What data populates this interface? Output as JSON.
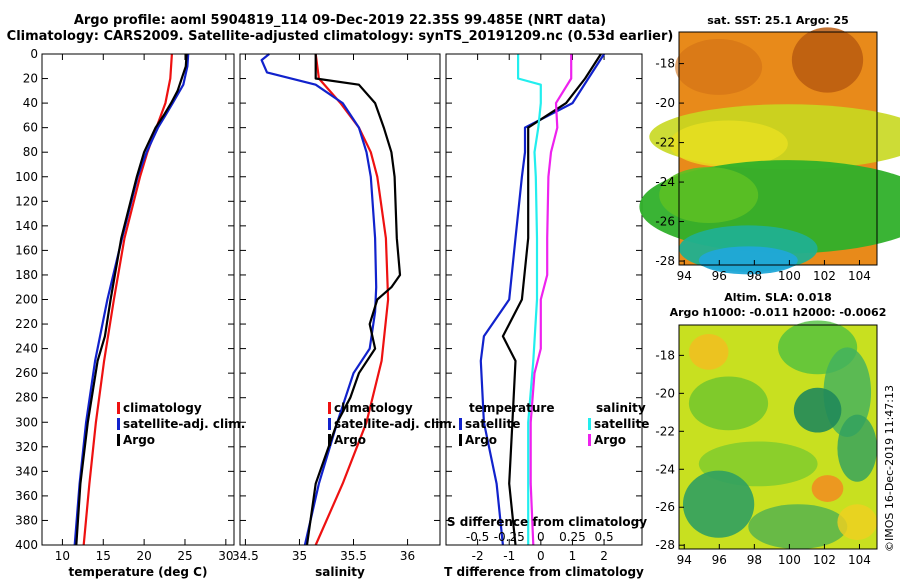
{
  "header": {
    "line1": "Argo profile: aoml 5904819_114 09-Dec-2019 22.35S 99.485E (NRT data)",
    "line2": "Climatology: CARS2009. Satellite-adjusted climatology: synTS_20191209.nc (0.53d earlier)"
  },
  "depth_ticks": [
    0,
    20,
    40,
    60,
    80,
    100,
    120,
    140,
    160,
    180,
    200,
    220,
    240,
    260,
    280,
    300,
    320,
    340,
    360,
    380,
    400
  ],
  "colors": {
    "climatology": "#ee1111",
    "satellite": "#1122cc",
    "argo": "#000000",
    "sat_salinity": "#22eeee",
    "argo_salinity": "#ee22ee"
  },
  "chart_data": [
    {
      "type": "line",
      "name": "temperature",
      "xlabel": "temperature (deg C)",
      "ylabel": "depth",
      "xlim": [
        7.5,
        31
      ],
      "ylim": [
        400,
        0
      ],
      "xticks": [
        10,
        15,
        20,
        25,
        30
      ],
      "legend": [
        "climatology",
        "satellite-adj. clim.",
        "Argo"
      ],
      "series": [
        {
          "name": "climatology",
          "color": "#ee1111",
          "depth": [
            0,
            20,
            40,
            60,
            80,
            100,
            150,
            200,
            250,
            300,
            350,
            400
          ],
          "values": [
            23.4,
            23.2,
            22.6,
            21.5,
            20.4,
            19.5,
            17.6,
            16.3,
            15.1,
            14.1,
            13.3,
            12.6
          ]
        },
        {
          "name": "satellite-adj. clim.",
          "color": "#1122cc",
          "depth": [
            0,
            10,
            25,
            40,
            50,
            60,
            80,
            100,
            150,
            200,
            250,
            300,
            350,
            400
          ],
          "values": [
            25.4,
            25.3,
            24.8,
            23.5,
            22.6,
            21.7,
            20.3,
            19.2,
            17.3,
            15.5,
            14.0,
            12.9,
            12.1,
            11.5
          ]
        },
        {
          "name": "Argo",
          "color": "#000000",
          "depth": [
            0,
            10,
            20,
            30,
            40,
            50,
            60,
            80,
            100,
            150,
            200,
            230,
            250,
            300,
            350,
            400
          ],
          "values": [
            25.2,
            25.1,
            24.6,
            24.1,
            23.3,
            22.4,
            21.4,
            20.0,
            19.1,
            17.2,
            15.9,
            15.2,
            14.3,
            13.1,
            12.2,
            11.7
          ]
        }
      ]
    },
    {
      "type": "line",
      "name": "salinity",
      "xlabel": "salinity",
      "ylabel": "depth",
      "xlim": [
        34.45,
        36.3
      ],
      "ylim": [
        400,
        0
      ],
      "xticks": [
        34.5,
        35,
        35.5,
        36
      ],
      "xticklabels": [
        "34.5",
        "35",
        "35.5",
        "36"
      ],
      "legend": [
        "climatology",
        "satellite-adj. clim.",
        "Argo"
      ],
      "series": [
        {
          "name": "climatology",
          "color": "#ee1111",
          "depth": [
            0,
            20,
            40,
            60,
            80,
            100,
            150,
            200,
            250,
            300,
            350,
            400
          ],
          "values": [
            35.15,
            35.18,
            35.38,
            35.55,
            35.66,
            35.72,
            35.8,
            35.82,
            35.76,
            35.62,
            35.4,
            35.15
          ]
        },
        {
          "name": "satellite-adj. clim.",
          "color": "#1122cc",
          "depth": [
            0,
            5,
            15,
            25,
            40,
            60,
            80,
            100,
            150,
            190,
            210,
            240,
            260,
            300,
            350,
            400
          ],
          "values": [
            34.72,
            34.65,
            34.7,
            35.15,
            35.4,
            35.55,
            35.62,
            35.66,
            35.7,
            35.71,
            35.7,
            35.65,
            35.5,
            35.35,
            35.18,
            35.05
          ]
        },
        {
          "name": "Argo",
          "color": "#000000",
          "depth": [
            0,
            5,
            20,
            25,
            40,
            60,
            80,
            100,
            150,
            180,
            190,
            200,
            220,
            240,
            260,
            280,
            300,
            350,
            400
          ],
          "values": [
            35.15,
            35.15,
            35.15,
            35.55,
            35.7,
            35.78,
            35.85,
            35.88,
            35.9,
            35.93,
            35.85,
            35.72,
            35.65,
            35.7,
            35.55,
            35.47,
            35.35,
            35.15,
            35.07
          ]
        }
      ]
    },
    {
      "type": "line",
      "name": "difference",
      "xlabel": "T difference from climatology",
      "ylabel": "depth",
      "xlim": [
        -3.0,
        3.2
      ],
      "ylim": [
        400,
        0
      ],
      "xticks": [
        -2,
        -1,
        0,
        1,
        2
      ],
      "top_axis_title": "S difference from climatology",
      "top_axis_labels": [
        "-0.5",
        "-0.25",
        "0",
        "0.25",
        "0.5"
      ],
      "legend_temperature_title": "temperature",
      "legend_salinity_title": "salinity",
      "legend_items": [
        "satellite",
        "Argo"
      ],
      "series": [
        {
          "name": "temperature satellite",
          "color": "#1122cc",
          "depth": [
            0,
            20,
            40,
            60,
            80,
            100,
            150,
            200,
            230,
            250,
            300,
            350,
            400
          ],
          "values": [
            2.0,
            1.5,
            1.0,
            -0.5,
            -0.5,
            -0.6,
            -0.8,
            -1.0,
            -1.8,
            -1.9,
            -1.8,
            -1.4,
            -1.2
          ]
        },
        {
          "name": "temperature Argo",
          "color": "#000000",
          "depth": [
            0,
            20,
            40,
            60,
            80,
            100,
            150,
            200,
            230,
            250,
            300,
            350,
            400
          ],
          "values": [
            1.9,
            1.4,
            0.8,
            -0.4,
            -0.4,
            -0.4,
            -0.4,
            -0.6,
            -1.2,
            -0.8,
            -0.9,
            -1.0,
            -0.8
          ]
        },
        {
          "name": "salinity satellite",
          "color": "#22eeee",
          "depth": [
            0,
            20,
            25,
            40,
            60,
            80,
            100,
            150,
            200,
            250,
            300,
            350,
            400
          ],
          "values": [
            -0.18,
            -0.18,
            0.0,
            0.0,
            -0.02,
            -0.05,
            -0.04,
            -0.03,
            -0.03,
            -0.06,
            -0.1,
            -0.1,
            -0.1
          ]
        },
        {
          "name": "salinity Argo",
          "color": "#ee22ee",
          "depth": [
            0,
            20,
            40,
            60,
            80,
            100,
            150,
            180,
            200,
            240,
            260,
            300,
            350,
            400
          ],
          "values": [
            0.24,
            0.24,
            0.12,
            0.13,
            0.08,
            0.06,
            0.05,
            0.05,
            0.0,
            0.0,
            -0.05,
            -0.08,
            -0.08,
            -0.06
          ]
        }
      ]
    },
    {
      "type": "heatmap",
      "name": "sst map",
      "title": "sat. SST: 25.1 Argo: 25",
      "xticks": [
        94,
        96,
        98,
        100,
        102,
        104
      ],
      "yticks": [
        -18,
        -20,
        -22,
        -24,
        -26,
        -28
      ]
    },
    {
      "type": "heatmap",
      "name": "sla map",
      "title1": "Altim. SLA: 0.018",
      "title2": "Argo h1000: -0.011 h2000: -0.0062",
      "xticks": [
        94,
        96,
        98,
        100,
        102,
        104
      ],
      "yticks": [
        -18,
        -20,
        -22,
        -24,
        -26,
        -28
      ]
    }
  ],
  "footer_stamp": "©IMOS 16-Dec-2019 11:47:13"
}
